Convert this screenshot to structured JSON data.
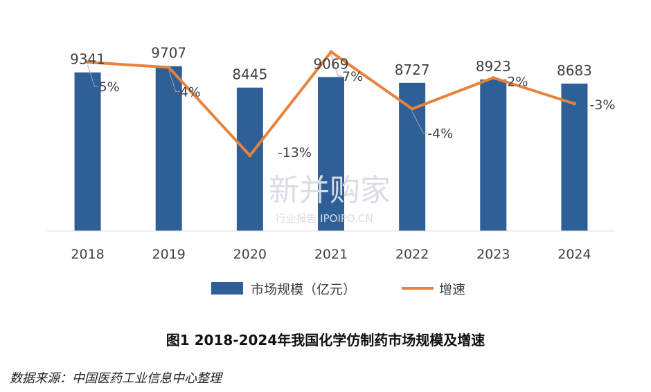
{
  "chart_data": {
    "type": "bar",
    "categories": [
      "2018",
      "2019",
      "2020",
      "2021",
      "2022",
      "2023",
      "2024"
    ],
    "series": [
      {
        "name": "市场规模（亿元）",
        "type": "bar",
        "values": [
          9341,
          9707,
          8445,
          9069,
          8727,
          8923,
          8683
        ],
        "color": "#2e5f97"
      },
      {
        "name": "增速",
        "type": "line",
        "values": [
          5,
          4,
          -13,
          7,
          -4,
          2,
          -3
        ],
        "labels": [
          "5%",
          "4%",
          "-13%",
          "7%",
          "-4%",
          "2%",
          "-3%"
        ],
        "color": "#e8823b"
      }
    ],
    "title": "图1 2018-2024年我国化学仿制药市场规模及增速",
    "xlabel": "",
    "ylabel": "",
    "ylim": [
      0,
      11000
    ],
    "growth_ylim": [
      -23,
      13
    ],
    "grid": false,
    "legend": "bottom"
  },
  "figure": {
    "title": "图1 2018-2024年我国化学仿制药市场规模及增速",
    "source": "数据来源：中国医药工业信息中心整理"
  },
  "watermark": {
    "main": "新并购家",
    "sub": "行业报告 IPOIPO.CN"
  }
}
